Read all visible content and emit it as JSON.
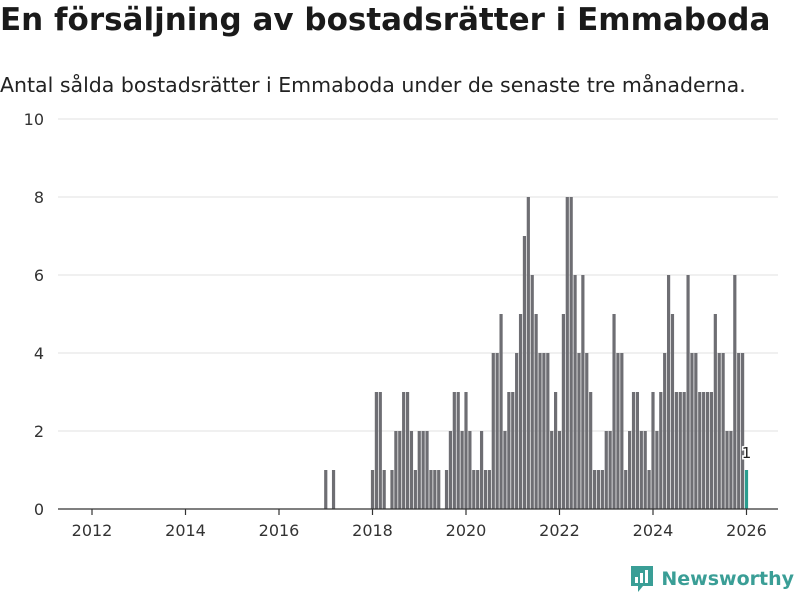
{
  "title": "En försäljning av bostadsrätter i Emmaboda",
  "subtitle": "Antal sålda bostadsrätter i Emmaboda under de senaste tre månaderna.",
  "brand": {
    "name": "Newsworthy",
    "color": "#3a9e96"
  },
  "chart_data": {
    "type": "bar",
    "x_unit": "month",
    "start": "2011-01",
    "bar_color": "#6e6e73",
    "highlight_color": "#2a9d8f",
    "ylim": [
      0,
      10
    ],
    "yticks": [
      "0",
      "2",
      "4",
      "6",
      "8",
      "10"
    ],
    "xticks": [
      {
        "year": 2012,
        "label": "2012"
      },
      {
        "year": 2014,
        "label": "2014"
      },
      {
        "year": 2016,
        "label": "2016"
      },
      {
        "year": 2018,
        "label": "2018"
      },
      {
        "year": 2020,
        "label": "2020"
      },
      {
        "year": 2022,
        "label": "2022"
      },
      {
        "year": 2024,
        "label": "2024"
      },
      {
        "year": 2026,
        "label": "2026"
      }
    ],
    "values": [
      0,
      0,
      0,
      0,
      0,
      0,
      0,
      0,
      0,
      0,
      0,
      0,
      0,
      0,
      0,
      0,
      0,
      0,
      0,
      0,
      0,
      0,
      0,
      0,
      0,
      0,
      0,
      0,
      0,
      0,
      0,
      0,
      0,
      0,
      0,
      0,
      0,
      0,
      0,
      0,
      0,
      0,
      0,
      0,
      0,
      0,
      0,
      0,
      0,
      0,
      0,
      0,
      0,
      0,
      0,
      0,
      0,
      0,
      0,
      0,
      0,
      0,
      0,
      0,
      0,
      0,
      0,
      0,
      0,
      0,
      0,
      0,
      1,
      0,
      1,
      0,
      0,
      0,
      0,
      0,
      0,
      0,
      0,
      0,
      1,
      3,
      3,
      1,
      0,
      1,
      2,
      2,
      3,
      3,
      2,
      1,
      2,
      2,
      2,
      1,
      1,
      1,
      0,
      1,
      2,
      3,
      3,
      2,
      3,
      2,
      1,
      1,
      2,
      1,
      1,
      4,
      4,
      5,
      2,
      3,
      3,
      4,
      5,
      7,
      8,
      6,
      5,
      4,
      4,
      4,
      2,
      3,
      2,
      5,
      8,
      8,
      6,
      4,
      6,
      4,
      3,
      1,
      1,
      1,
      2,
      2,
      5,
      4,
      4,
      1,
      2,
      3,
      3,
      2,
      2,
      1,
      3,
      2,
      3,
      4,
      6,
      5,
      3,
      3,
      3,
      6,
      4,
      4,
      3,
      3,
      3,
      3,
      5,
      4,
      4,
      2,
      2,
      6,
      4,
      4,
      1
    ],
    "last_label": "1",
    "title": "En försäljning av bostadsrätter i Emmaboda",
    "xlabel": "",
    "ylabel": ""
  }
}
